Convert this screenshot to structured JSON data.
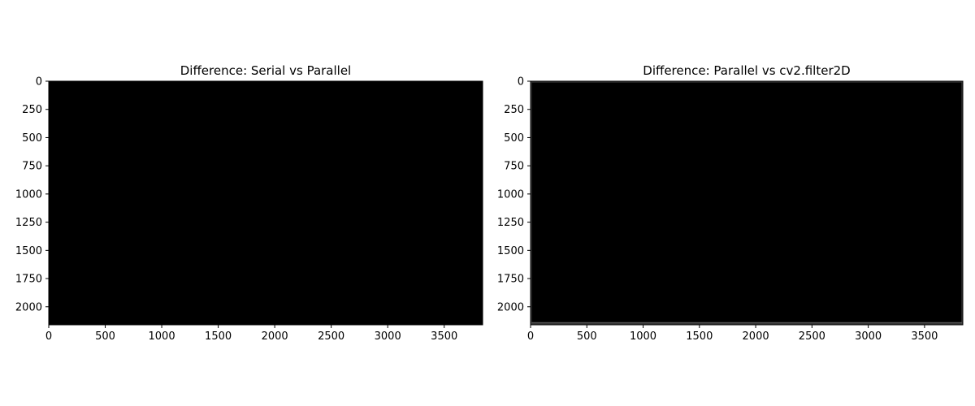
{
  "chart_data": [
    {
      "type": "heatmap",
      "title": "Difference: Serial vs Parallel",
      "colormap": "gray",
      "background": "#000000",
      "xlim": [
        0,
        3840
      ],
      "ylim": [
        2160,
        0
      ],
      "x_ticks": [
        0,
        500,
        1000,
        1500,
        2000,
        2500,
        3000,
        3500
      ],
      "y_ticks": [
        0,
        250,
        500,
        750,
        1000,
        1250,
        1500,
        1750,
        2000
      ],
      "xlabel": "",
      "ylabel": "",
      "grid": false,
      "border_artifact": false
    },
    {
      "type": "heatmap",
      "title": "Difference: Parallel vs cv2.filter2D",
      "colormap": "gray",
      "background": "#000000",
      "xlim": [
        0,
        3840
      ],
      "ylim": [
        2160,
        0
      ],
      "x_ticks": [
        0,
        500,
        1000,
        1500,
        2000,
        2500,
        3000,
        3500
      ],
      "y_ticks": [
        0,
        250,
        500,
        750,
        1000,
        1250,
        1500,
        1750,
        2000
      ],
      "xlabel": "",
      "ylabel": "",
      "grid": false,
      "border_artifact": true,
      "border_color": "#3a3a3a"
    }
  ]
}
